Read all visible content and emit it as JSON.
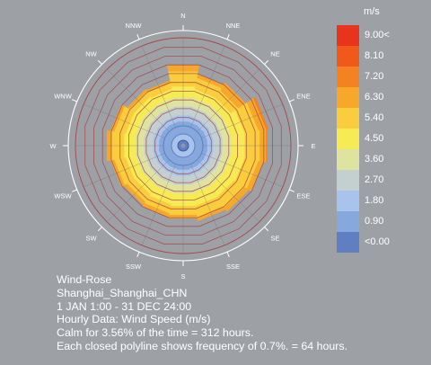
{
  "legend": {
    "unit": "m/s",
    "bins": [
      {
        "label": "9.00<",
        "color": "#e8341c"
      },
      {
        "label": "8.10",
        "color": "#ef5a1b"
      },
      {
        "label": "7.20",
        "color": "#f48220"
      },
      {
        "label": "6.30",
        "color": "#f7a72a"
      },
      {
        "label": "5.40",
        "color": "#f9cd3d"
      },
      {
        "label": "4.50",
        "color": "#f6ea55"
      },
      {
        "label": "3.60",
        "color": "#dfe3a0"
      },
      {
        "label": "2.70",
        "color": "#c4d0cf"
      },
      {
        "label": "1.80",
        "color": "#a9c4ec"
      },
      {
        "label": "0.90",
        "color": "#87a8dc"
      },
      {
        "label": "<0.00",
        "color": "#5f7fc2"
      }
    ]
  },
  "info": {
    "line1": "Wind-Rose",
    "line2": "Shanghai_Shanghai_CHN",
    "line3": "1 JAN 1:00 - 31 DEC 24:00",
    "line4": "Hourly Data: Wind Speed (m/s)",
    "line5": "Calm for 3.56% of the time = 312 hours.",
    "line6": "Each closed polyline shows frequency of 0.7%. = 64 hours."
  },
  "chart_data": {
    "type": "wind-rose",
    "directions": [
      "N",
      "NNE",
      "NE",
      "ENE",
      "E",
      "ESE",
      "SE",
      "SSE",
      "S",
      "SSW",
      "SW",
      "WSW",
      "W",
      "WNW",
      "NW",
      "NNW"
    ],
    "speed_bins_ms": [
      "<0.00",
      "0.90",
      "1.80",
      "2.70",
      "3.60",
      "4.50",
      "5.40",
      "6.30",
      "7.20",
      "8.10",
      "9.00<"
    ],
    "ring_step_percent": 0.7,
    "ring_count": 9,
    "calm_percent": 3.56,
    "frequency_percent_by_bin": {
      "comment_free": true,
      "N": [
        0.0,
        0.35,
        0.5,
        0.7,
        0.7,
        0.9,
        1.2,
        0.5,
        0.0,
        0.0,
        0.0
      ],
      "NNE": [
        0.0,
        0.35,
        0.5,
        0.7,
        0.7,
        0.7,
        0.9,
        0.3,
        0.0,
        0.0,
        0.0
      ],
      "NE": [
        0.0,
        0.35,
        0.5,
        0.7,
        0.7,
        0.7,
        0.7,
        0.7,
        0.0,
        0.0,
        0.0
      ],
      "ENE": [
        0.0,
        0.35,
        0.5,
        0.7,
        0.7,
        1.1,
        1.1,
        0.6,
        0.2,
        0.0,
        0.0
      ],
      "E": [
        0.0,
        0.35,
        0.5,
        0.7,
        0.7,
        1.1,
        1.2,
        0.5,
        0.1,
        0.0,
        0.0
      ],
      "ESE": [
        0.0,
        0.35,
        0.5,
        0.7,
        0.7,
        1.1,
        1.1,
        0.4,
        0.0,
        0.0,
        0.0
      ],
      "SE": [
        0.0,
        0.35,
        0.5,
        0.7,
        0.7,
        1.0,
        1.0,
        0.4,
        0.0,
        0.0,
        0.0
      ],
      "SSE": [
        0.0,
        0.35,
        0.5,
        0.7,
        0.7,
        1.0,
        0.9,
        0.3,
        0.0,
        0.0,
        0.0
      ],
      "S": [
        0.0,
        0.35,
        0.5,
        0.7,
        0.7,
        1.0,
        0.7,
        0.3,
        0.0,
        0.0,
        0.0
      ],
      "SSW": [
        0.0,
        0.35,
        0.5,
        0.7,
        0.7,
        0.9,
        0.7,
        0.3,
        0.0,
        0.0,
        0.0
      ],
      "SW": [
        0.0,
        0.35,
        0.5,
        0.7,
        0.7,
        0.8,
        0.7,
        0.3,
        0.0,
        0.0,
        0.0
      ],
      "WSW": [
        0.0,
        0.35,
        0.5,
        0.7,
        0.7,
        0.8,
        0.9,
        0.3,
        0.0,
        0.0,
        0.0
      ],
      "W": [
        0.0,
        0.35,
        0.5,
        0.7,
        0.7,
        0.9,
        1.0,
        0.4,
        0.0,
        0.0,
        0.0
      ],
      "WNW": [
        0.0,
        0.35,
        0.5,
        0.7,
        0.7,
        0.8,
        0.9,
        0.3,
        0.0,
        0.0,
        0.0
      ],
      "NW": [
        0.0,
        0.35,
        0.5,
        0.7,
        0.7,
        0.8,
        0.5,
        0.2,
        0.0,
        0.0,
        0.0
      ],
      "NNW": [
        0.0,
        0.35,
        0.5,
        0.7,
        0.7,
        0.7,
        0.5,
        0.2,
        0.0,
        0.0,
        0.0
      ]
    }
  }
}
